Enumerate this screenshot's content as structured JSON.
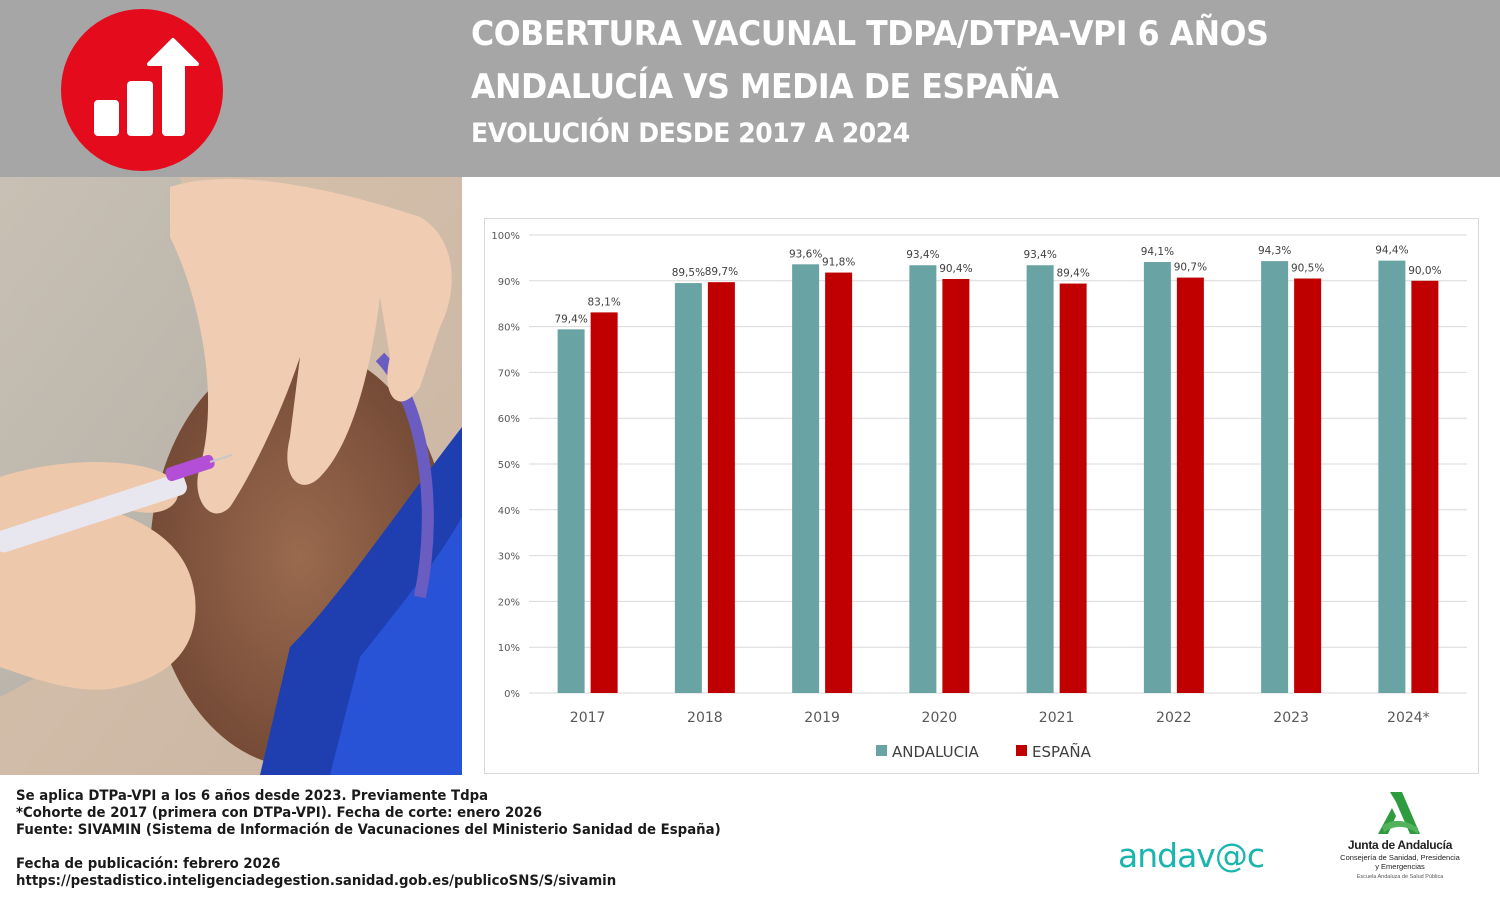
{
  "header": {
    "title_line1": "COBERTURA VACUNAL TDPA/DTPA-VPI 6 AÑOS",
    "title_line2": "ANDALUCÍA VS MEDIA DE ESPAÑA",
    "title_line3": "EVOLUCIÓN DESDE 2017 A 2024",
    "icon": "bar-chart-up-arrow-icon",
    "icon_color": "#e30b1c",
    "background_color": "#a6a6a6"
  },
  "photo": {
    "icon": "vaccination-photo"
  },
  "chart_data": {
    "type": "bar",
    "title": "",
    "xlabel": "",
    "ylabel": "",
    "categories": [
      "2017",
      "2018",
      "2019",
      "2020",
      "2021",
      "2022",
      "2023",
      "2024*"
    ],
    "series": [
      {
        "name": "ANDALUCIA",
        "color": "#6aa3a3",
        "values": [
          79.4,
          89.5,
          93.6,
          93.4,
          93.4,
          94.1,
          94.3,
          94.4
        ],
        "labels": [
          "79,4%",
          "89,5%",
          "93,6%",
          "93,4%",
          "93,4%",
          "94,1%",
          "94,3%",
          "94,4%"
        ]
      },
      {
        "name": "ESPAÑA",
        "color": "#c00000",
        "values": [
          83.1,
          89.7,
          91.8,
          90.4,
          89.4,
          90.7,
          90.5,
          90.0
        ],
        "labels": [
          "83,1%",
          "89,7%",
          "91,8%",
          "90,4%",
          "89,4%",
          "90,7%",
          "90,5%",
          "90,0%"
        ]
      }
    ],
    "ylim": [
      0,
      100
    ],
    "yticks": [
      0,
      10,
      20,
      30,
      40,
      50,
      60,
      70,
      80,
      90,
      100
    ],
    "ytick_labels": [
      "0%",
      "10%",
      "20%",
      "30%",
      "40%",
      "50%",
      "60%",
      "70%",
      "80%",
      "90%",
      "100%"
    ],
    "grid": true,
    "legend_position": "bottom"
  },
  "footer": {
    "line1": "Se aplica DTPa-VPI a los 6 años desde 2023. Previamente Tdpa",
    "line2": "*Cohorte de 2017 (primera con DTPa-VPI). Fecha de corte: enero 2026",
    "line3": "Fuente: SIVAMIN (Sistema de Información de Vacunaciones del Ministerio Sanidad de España)",
    "line4": "Fecha de publicación: febrero 2026",
    "line5": "https://pestadistico.inteligenciadegestion.sanidad.gob.es/publicoSNS/S/sivamin"
  },
  "logos": {
    "andavac": "andav@c",
    "junta_name": "Junta de Andalucía",
    "junta_consejeria_1": "Consejería de Sanidad, Presidencia",
    "junta_consejeria_2": "y Emergencias",
    "junta_escuela": "Escuela Andaluza de Salud Pública",
    "junta_color": "#2e9b3f",
    "andavac_color": "#1bb5b0"
  }
}
